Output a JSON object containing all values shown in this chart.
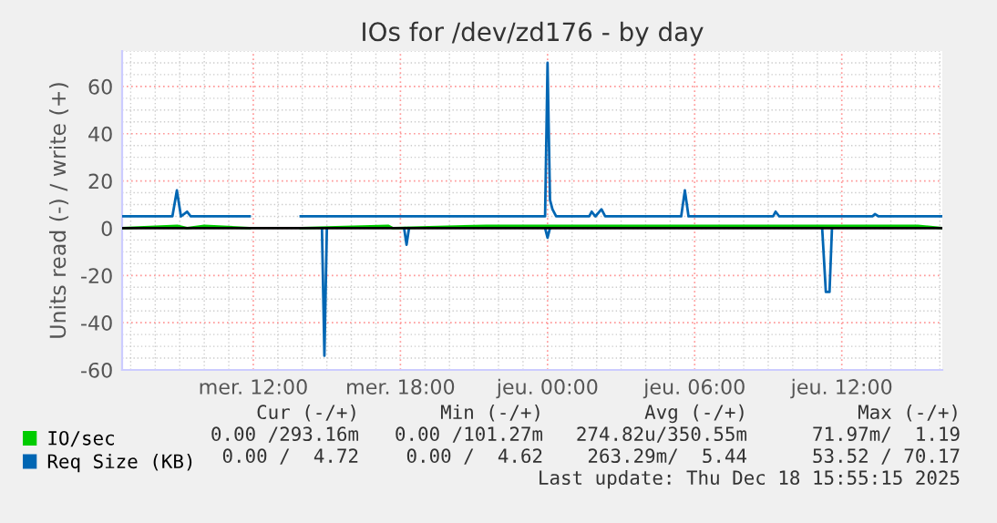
{
  "chart_data": {
    "type": "line",
    "title": "IOs for /dev/zd176 - by day",
    "ylabel": "Units read (-) / write (+)",
    "xlim": [
      "2025-12-17T06:39",
      "2025-12-18T16:06"
    ],
    "xticks": [
      {
        "value": "2025-12-17T12:00",
        "label": "mer. 12:00"
      },
      {
        "value": "2025-12-17T18:00",
        "label": "mer. 18:00"
      },
      {
        "value": "2025-12-18T00:00",
        "label": "jeu. 00:00"
      },
      {
        "value": "2025-12-18T06:00",
        "label": "jeu. 06:00"
      },
      {
        "value": "2025-12-18T12:00",
        "label": "jeu. 12:00"
      }
    ],
    "ylim": [
      -60,
      75
    ],
    "yticks": [
      -60,
      -40,
      -20,
      0,
      20,
      40,
      60
    ],
    "grid": true,
    "legend": "bottom",
    "ref_lines": [
      {
        "axis": "y",
        "value": 0,
        "color": "#000000"
      }
    ],
    "series": [
      {
        "name": "IO/sec",
        "color": "#00cc00",
        "x": [
          "2025-12-17T06:39",
          "2025-12-17T08:54",
          "2025-12-17T09:18",
          "2025-12-17T10:00",
          "2025-12-17T11:51",
          "2025-12-17T12:54",
          "2025-12-17T13:56",
          "2025-12-17T17:30",
          "2025-12-17T17:42",
          "2025-12-17T21:30",
          "2025-12-17T23:18",
          "2025-12-18T00:12",
          "2025-12-18T01:00",
          "2025-12-18T05:36",
          "2025-12-18T07:30",
          "2025-12-18T08:18",
          "2025-12-18T09:12",
          "2025-12-18T09:30",
          "2025-12-18T11:18",
          "2025-12-18T12:30",
          "2025-12-18T14:06",
          "2025-12-18T15:06",
          "2025-12-18T16:06"
        ],
        "values": [
          0,
          1,
          0,
          1,
          0,
          null,
          0,
          1,
          0,
          1,
          1,
          1,
          1,
          1,
          1,
          1,
          1,
          1,
          1,
          1,
          1,
          1,
          0
        ]
      },
      {
        "name": "Req Size (KB)",
        "color": "#0066b3",
        "x": [
          "2025-12-17T06:39",
          "2025-12-17T08:42",
          "2025-12-17T08:53",
          "2025-12-17T09:03",
          "2025-12-17T09:18",
          "2025-12-17T09:27",
          "2025-12-17T11:51",
          "2025-12-17T12:54",
          "2025-12-17T13:56",
          "2025-12-17T23:54",
          "2025-12-18T00:00",
          "2025-12-18T00:06",
          "2025-12-18T00:12",
          "2025-12-18T00:21",
          "2025-12-18T01:42",
          "2025-12-18T01:48",
          "2025-12-18T01:57",
          "2025-12-18T02:12",
          "2025-12-18T02:21",
          "2025-12-18T05:27",
          "2025-12-18T05:36",
          "2025-12-18T05:45",
          "2025-12-18T09:12",
          "2025-12-18T09:18",
          "2025-12-18T09:27",
          "2025-12-18T13:15",
          "2025-12-18T13:21",
          "2025-12-18T13:30",
          "2025-12-18T16:06"
        ],
        "values": [
          5,
          5,
          16,
          5,
          7,
          5,
          5,
          null,
          5,
          5,
          70,
          12,
          8,
          5,
          5,
          7,
          5,
          8,
          5,
          5,
          16,
          5,
          5,
          7,
          5,
          5,
          6,
          5,
          5
        ]
      },
      {
        "color": "#0066b3",
        "x": [
          "2025-12-17T14:48",
          "2025-12-17T14:54",
          "2025-12-17T15:00",
          "2025-12-17T16:00",
          "2025-12-17T18:09",
          "2025-12-17T18:15",
          "2025-12-17T18:21",
          "2025-12-17T20:00",
          "2025-12-17T23:54",
          "2025-12-18T00:00",
          "2025-12-18T00:06",
          "2025-12-18T05:00",
          "2025-12-18T11:12",
          "2025-12-18T11:21",
          "2025-12-18T11:30",
          "2025-12-18T11:36"
        ],
        "values": [
          0,
          -54,
          0,
          null,
          0,
          -7,
          0,
          null,
          0,
          -4,
          0,
          null,
          0,
          -27,
          -27,
          0
        ]
      }
    ],
    "annotations": [
      "Cur (-/+)",
      "Min (-/+)",
      "Avg (-/+)",
      "Max (-/+)",
      "0.00 /293.16m",
      "0.00 /101.27m",
      "274.82u/350.55m",
      "71.97m/  1.19",
      "0.00 /  4.72",
      "0.00 /  4.62",
      "263.29m/  5.44",
      "53.52 / 70.17",
      "Last update: Thu Dec 18 15:55:15 2025"
    ]
  }
}
